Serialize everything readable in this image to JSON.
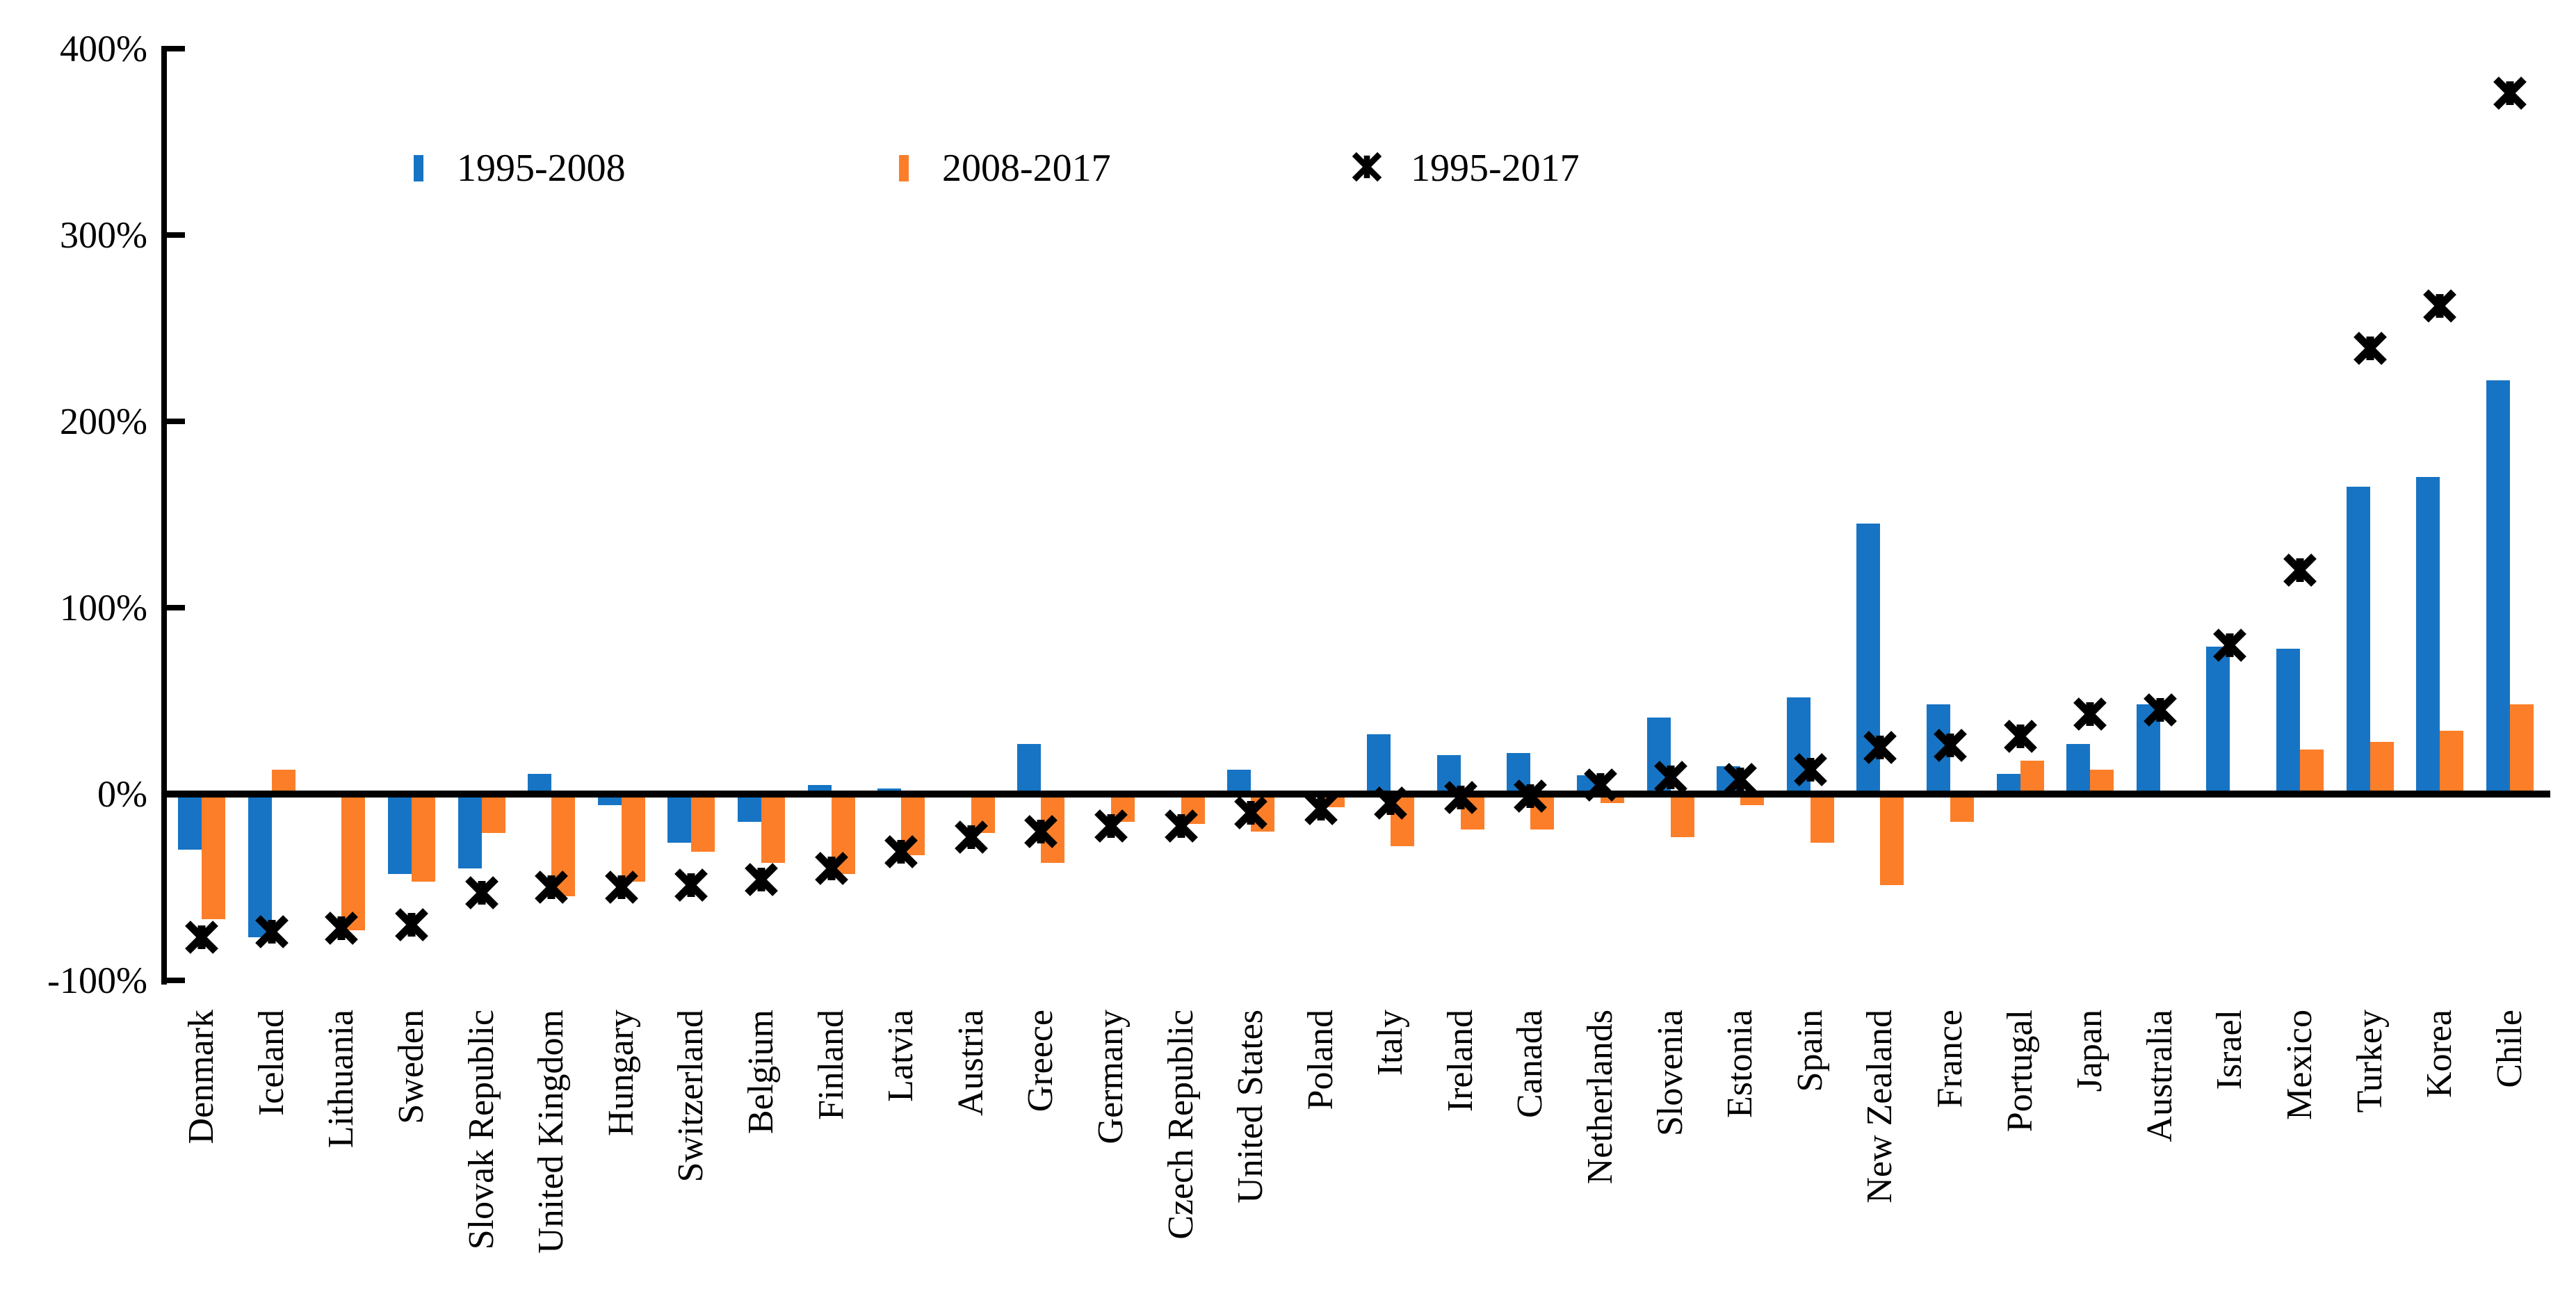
{
  "chart_data": {
    "type": "bar",
    "title": "",
    "xlabel": "",
    "ylabel": "",
    "ylim": [
      -100,
      400
    ],
    "grid": false,
    "legend_position": "top-left-inside",
    "y_unit": "%",
    "yticks": [
      {
        "label": "400%",
        "value": 400
      },
      {
        "label": "300%",
        "value": 300
      },
      {
        "label": "200%",
        "value": 200
      },
      {
        "label": "100%",
        "value": 100
      },
      {
        "label": "0%",
        "value": 0
      },
      {
        "label": "-100%",
        "value": -100
      }
    ],
    "categories": [
      "Denmark",
      "Iceland",
      "Lithuania",
      "Sweden",
      "Slovak Republic",
      "United Kingdom",
      "Hungary",
      "Switzerland",
      "Belgium",
      "Finland",
      "Latvia",
      "Austria",
      "Greece",
      "Germany",
      "Czech Republic",
      "United States",
      "Poland",
      "Italy",
      "Ireland",
      "Canada",
      "Netherlands",
      "Slovenia",
      "Estonia",
      "Spain",
      "New Zealand",
      "France",
      "Portugal",
      "Japan",
      "Australia",
      "Israel",
      "Mexico",
      "Turkey",
      "Korea",
      "Chile"
    ],
    "series": [
      {
        "name": "1995-2008",
        "kind": "bar",
        "color": "#1774C4",
        "values": [
          -30,
          -77,
          2,
          -43,
          -40,
          11,
          -6,
          -26,
          -15,
          5,
          3,
          -2,
          27,
          -2,
          -1,
          13,
          -1,
          32,
          21,
          22,
          10,
          41,
          15,
          52,
          145,
          48,
          11,
          27,
          48,
          79,
          78,
          165,
          170,
          222
        ]
      },
      {
        "name": "2008-2017",
        "kind": "bar",
        "color": "#FC7E28",
        "values": [
          -67,
          13,
          -73,
          -47,
          -21,
          -55,
          -47,
          -31,
          -37,
          -43,
          -33,
          -21,
          -37,
          -15,
          -16,
          -20,
          -7,
          -28,
          -19,
          -19,
          -5,
          -23,
          -6,
          -26,
          -49,
          -15,
          18,
          13,
          -2,
          1,
          24,
          28,
          34,
          48
        ]
      },
      {
        "name": "1995-2017",
        "kind": "scatter",
        "marker": "x-asterisk",
        "color": "#000000",
        "values": [
          -77,
          -74,
          -72,
          -70,
          -53,
          -50,
          -50,
          -49,
          -46,
          -40,
          -31,
          -23,
          -20,
          -17,
          -17,
          -10,
          -8,
          -5,
          -2,
          -1,
          5,
          9,
          8,
          13,
          25,
          26,
          31,
          43,
          45,
          80,
          120,
          239,
          262,
          376
        ]
      }
    ]
  },
  "legend": {
    "item1_label": "1995-2008",
    "item2_label": "2008-2017",
    "item3_label": "1995-2017"
  }
}
